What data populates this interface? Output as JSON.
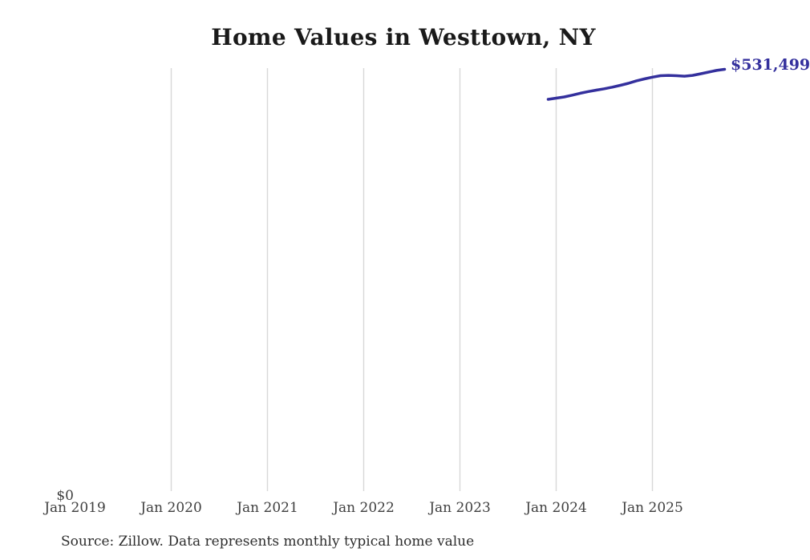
{
  "title": "Home Values in Westtown, NY",
  "source_note": "Source: Zillow. Data represents monthly typical home value",
  "colors": {
    "title": "#1a1a1a",
    "axis_label": "#3f3f3f",
    "source_text": "#2d2d2d",
    "gridline": "#d8d8d8",
    "line": "#34309d"
  },
  "chart_data": {
    "type": "line",
    "title": "Home Values in Westtown, NY",
    "xlabel": "",
    "ylabel": "",
    "x_ticks": [
      "Jan 2019",
      "Jan 2020",
      "Jan 2021",
      "Jan 2022",
      "Jan 2023",
      "Jan 2024",
      "Jan 2025"
    ],
    "y_min_label": "$0",
    "ylim": [
      0,
      533000
    ],
    "grid": "vertical-gridlines-only-no-gridline-at-first-tick",
    "legend": "none",
    "end_label": "$531,499",
    "series": [
      {
        "name": "Monthly typical home value",
        "x": [
          "Dec 2023",
          "Jan 2024",
          "Feb 2024",
          "Mar 2024",
          "Apr 2024",
          "May 2024",
          "Jun 2024",
          "Jul 2024",
          "Aug 2024",
          "Sep 2024",
          "Oct 2024",
          "Nov 2024",
          "Dec 2024",
          "Jan 2025",
          "Feb 2025",
          "Mar 2025",
          "Apr 2025",
          "May 2025",
          "Jun 2025",
          "Jul 2025",
          "Aug 2025",
          "Sep 2025",
          "Oct 2025"
        ],
        "values": [
          493600,
          495100,
          496700,
          498900,
          501300,
          503400,
          505200,
          507000,
          509000,
          511300,
          513800,
          516900,
          519400,
          521600,
          523400,
          523800,
          523400,
          522800,
          523800,
          525800,
          528000,
          530100,
          531499
        ]
      }
    ]
  }
}
